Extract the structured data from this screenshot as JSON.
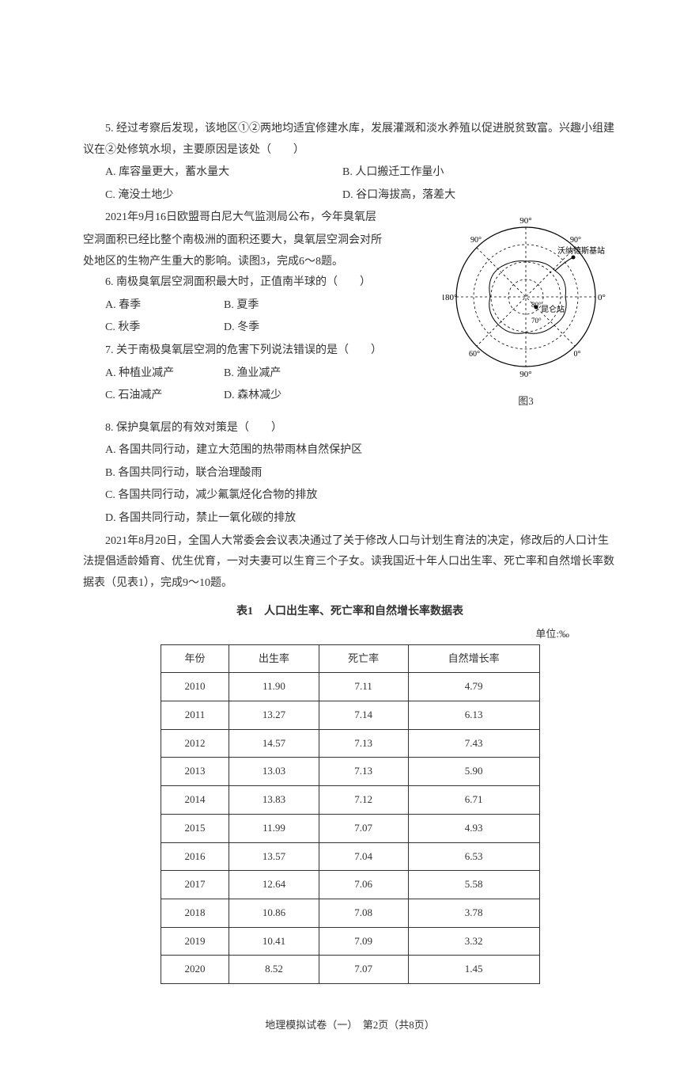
{
  "q5": {
    "stem": "5. 经过考察后发现，该地区①②两地均适宜修建水库，发展灌溉和淡水养殖以促进脱贫致富。兴趣小组建议在②处修筑水坝，主要原因是该处（　　）",
    "opts": {
      "a": "A. 库容量更大，蓄水量大",
      "b": "B. 人口搬迁工作量小",
      "c": "C. 淹没土地少",
      "d": "D. 谷口海拔高，落差大"
    }
  },
  "passage2": {
    "line1": "2021年9月16日欧盟哥白尼大气监测局公布，今年臭氧层",
    "line2": "空洞面积已经比整个南极洲的面积还要大，臭氧层空洞会对所",
    "line3": "处地区的生物产生重大的影响。读图3，完成6～8题。"
  },
  "q6": {
    "stem": "6. 南极臭氧层空洞面积最大时，正值南半球的（　　）",
    "opts": {
      "a": "A. 春季",
      "b": "B. 夏季",
      "c": "C. 秋季",
      "d": "D. 冬季"
    }
  },
  "q7": {
    "stem": "7. 关于南极臭氧层空洞的危害下列说法错误的是（　　）",
    "opts": {
      "a": "A. 种植业减产",
      "b": "B. 渔业减产",
      "c": "C. 石油减产",
      "d": "D. 森林减少"
    }
  },
  "q8": {
    "stem": "8. 保护臭氧层的有效对策是（　　）",
    "opts": {
      "a": "A. 各国共同行动，建立大范围的热带雨林自然保护区",
      "b": "B. 各国共同行动，联合治理酸雨",
      "c": "C. 各国共同行动，减少氟氯烃化合物的排放",
      "d": "D. 各国共同行动，禁止一氧化碳的排放"
    }
  },
  "passage3": "2021年8月20日，全国人大常委会会议表决通过了关于修改人口与计划生育法的决定，修改后的人口计生法提倡适龄婚育、优生优育，一对夫妻可以生育三个子女。读我国近十年人口出生率、死亡率和自然增长率数据表（见表1），完成9～10题。",
  "table": {
    "caption": "表1　人口出生率、死亡率和自然增长率数据表",
    "unit": "单位:‰",
    "headers": [
      "年份",
      "出生率",
      "死亡率",
      "自然增长率"
    ],
    "rows": [
      [
        "2010",
        "11.90",
        "7.11",
        "4.79"
      ],
      [
        "2011",
        "13.27",
        "7.14",
        "6.13"
      ],
      [
        "2012",
        "14.57",
        "7.13",
        "7.43"
      ],
      [
        "2013",
        "13.03",
        "7.13",
        "5.90"
      ],
      [
        "2014",
        "13.83",
        "7.12",
        "6.71"
      ],
      [
        "2015",
        "11.99",
        "7.07",
        "4.93"
      ],
      [
        "2016",
        "13.57",
        "7.04",
        "6.53"
      ],
      [
        "2017",
        "12.64",
        "7.06",
        "5.58"
      ],
      [
        "2018",
        "10.86",
        "7.08",
        "3.78"
      ],
      [
        "2019",
        "10.41",
        "7.09",
        "3.32"
      ],
      [
        "2020",
        "8.52",
        "7.07",
        "1.45"
      ]
    ]
  },
  "figure3": {
    "caption": "图3",
    "labels": {
      "top": "90°",
      "bottom": "90°",
      "left": "180°",
      "right": "0°",
      "upperleft": "90°",
      "upperright": "90°",
      "lowerleft": "60°",
      "lowerright": "0°",
      "inner70": "70°",
      "inner80": "80°",
      "station1": "沃纳德斯基站",
      "station2": "昆仑站"
    },
    "style": {
      "outer_circle_color": "#000",
      "outer_stroke": 1.2,
      "dash": "3,3",
      "label_fontsize": 11
    }
  },
  "footer": "地理模拟试卷（一）　第2页（共8页）"
}
